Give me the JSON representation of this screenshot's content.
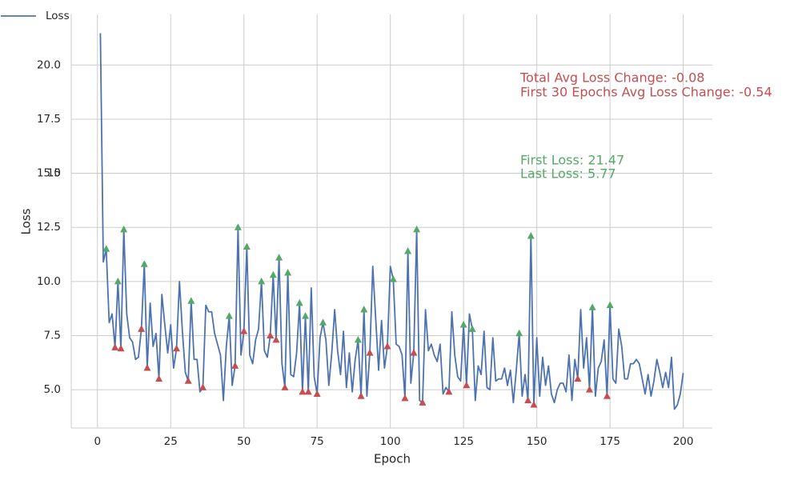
{
  "chart_data": {
    "type": "line",
    "x_label": "Epoch",
    "y_label": "Loss",
    "x": [
      1,
      2,
      3,
      4,
      5,
      6,
      7,
      8,
      9,
      10,
      11,
      12,
      13,
      14,
      15,
      16,
      17,
      18,
      19,
      20,
      21,
      22,
      23,
      24,
      25,
      26,
      27,
      28,
      29,
      30,
      31,
      32,
      33,
      34,
      35,
      36,
      37,
      38,
      39,
      40,
      41,
      42,
      43,
      44,
      45,
      46,
      47,
      48,
      49,
      50,
      51,
      52,
      53,
      54,
      55,
      56,
      57,
      58,
      59,
      60,
      61,
      62,
      63,
      64,
      65,
      66,
      67,
      68,
      69,
      70,
      71,
      72,
      73,
      74,
      75,
      76,
      77,
      78,
      79,
      80,
      81,
      82,
      83,
      84,
      85,
      86,
      87,
      88,
      89,
      90,
      91,
      92,
      93,
      94,
      95,
      96,
      97,
      98,
      99,
      100,
      101,
      102,
      103,
      104,
      105,
      106,
      107,
      108,
      109,
      110,
      111,
      112,
      113,
      114,
      115,
      116,
      117,
      118,
      119,
      120,
      121,
      122,
      123,
      124,
      125,
      126,
      127,
      128,
      129,
      130,
      131,
      132,
      133,
      134,
      135,
      136,
      137,
      138,
      139,
      140,
      141,
      142,
      143,
      144,
      145,
      146,
      147,
      148,
      149,
      150,
      151,
      152,
      153,
      154,
      155,
      156,
      157,
      158,
      159,
      160,
      161,
      162,
      163,
      164,
      165,
      166,
      167,
      168,
      169,
      170,
      171,
      172,
      173,
      174,
      175,
      176,
      177,
      178,
      179,
      180,
      181,
      182,
      183,
      184,
      185,
      186,
      187,
      188,
      189,
      190,
      191,
      192,
      193,
      194,
      195,
      196,
      197,
      198,
      199,
      200
    ],
    "series": [
      {
        "name": "Loss",
        "color": "#4c72b0",
        "values": [
          21.47,
          10.9,
          11.5,
          8.1,
          8.5,
          6.95,
          10.0,
          6.9,
          12.4,
          8.5,
          7.4,
          7.2,
          6.4,
          6.5,
          7.8,
          10.8,
          6.0,
          9.0,
          7.0,
          7.6,
          5.5,
          9.4,
          8.0,
          6.7,
          8.0,
          6.0,
          6.9,
          10.0,
          7.7,
          5.8,
          5.4,
          9.1,
          6.4,
          6.4,
          4.9,
          5.1,
          8.9,
          8.6,
          8.6,
          7.6,
          7.1,
          6.6,
          4.5,
          7.0,
          8.4,
          5.2,
          6.1,
          12.5,
          6.6,
          7.7,
          11.6,
          6.6,
          6.2,
          7.3,
          7.8,
          10.0,
          6.8,
          6.5,
          7.5,
          10.3,
          7.3,
          11.1,
          6.2,
          5.1,
          10.4,
          5.7,
          5.6,
          6.7,
          9.0,
          4.9,
          8.4,
          4.9,
          9.7,
          5.6,
          4.8,
          7.4,
          8.1,
          7.3,
          5.2,
          6.7,
          8.7,
          6.8,
          5.7,
          7.7,
          5.1,
          6.7,
          4.9,
          6.4,
          7.3,
          4.7,
          8.7,
          4.7,
          6.7,
          10.7,
          8.3,
          5.9,
          8.2,
          6.0,
          7.0,
          10.7,
          10.1,
          7.1,
          7.0,
          6.6,
          4.6,
          11.4,
          5.3,
          6.7,
          12.4,
          4.5,
          4.4,
          8.7,
          6.8,
          7.1,
          6.6,
          6.3,
          7.1,
          4.8,
          5.1,
          4.9,
          8.6,
          6.6,
          5.6,
          5.4,
          8.0,
          5.2,
          8.5,
          7.8,
          4.5,
          6.1,
          5.7,
          7.7,
          5.1,
          5.0,
          7.4,
          5.4,
          5.5,
          5.5,
          6.0,
          5.2,
          5.9,
          4.4,
          5.9,
          7.6,
          4.7,
          5.7,
          4.5,
          12.1,
          4.3,
          7.4,
          4.7,
          6.5,
          5.2,
          6.1,
          4.8,
          4.4,
          5.0,
          5.3,
          5.3,
          4.9,
          6.6,
          4.5,
          6.4,
          5.5,
          8.7,
          6.0,
          7.4,
          5.0,
          8.8,
          4.7,
          6.0,
          6.3,
          7.3,
          4.7,
          8.9,
          5.5,
          5.3,
          7.8,
          7.0,
          5.5,
          5.5,
          6.2,
          6.2,
          6.4,
          6.2,
          5.5,
          4.8,
          5.7,
          4.7,
          5.4,
          6.4,
          5.8,
          5.1,
          5.8,
          5.1,
          6.5,
          4.1,
          4.3,
          4.8,
          5.77
        ]
      }
    ],
    "markers": [
      {
        "color": "#55a868",
        "x": [
          3,
          7,
          9,
          16,
          32,
          45,
          48,
          51,
          56,
          60,
          62,
          65,
          69,
          71,
          77,
          89,
          91,
          101,
          106,
          109,
          125,
          128,
          144,
          148,
          169,
          175
        ]
      },
      {
        "color": "#c44e52",
        "x": [
          6,
          8,
          15,
          17,
          21,
          27,
          31,
          36,
          47,
          50,
          59,
          61,
          64,
          70,
          72,
          75,
          90,
          93,
          99,
          105,
          108,
          111,
          120,
          126,
          147,
          149,
          164,
          168,
          174
        ]
      }
    ],
    "annotations": [
      {
        "text": "Total Avg Loss Change: -0.08",
        "color": "#c44e52"
      },
      {
        "text": "First 30 Epochs Avg Loss Change: -0.54",
        "color": "#c44e52"
      },
      {
        "text": "First Loss: 21.47",
        "color": "#55a868"
      },
      {
        "text": "Last Loss: 5.77",
        "color": "#55a868"
      }
    ],
    "xlim": [
      -8.95,
      209.95
    ],
    "ylim": [
      3.23,
      22.34
    ],
    "xticks": [
      0,
      25,
      50,
      75,
      100,
      125,
      150,
      175,
      200
    ],
    "yticks": [
      {
        "value": 5,
        "label": "5.0"
      },
      7.5,
      {
        "value": 10,
        "label": "10.0"
      },
      12.5,
      15,
      {
        "value": 15,
        "label": "15.0"
      },
      17.5,
      {
        "value": 20,
        "label": "20.0"
      }
    ],
    "grid": true,
    "legend": "upper-left"
  }
}
